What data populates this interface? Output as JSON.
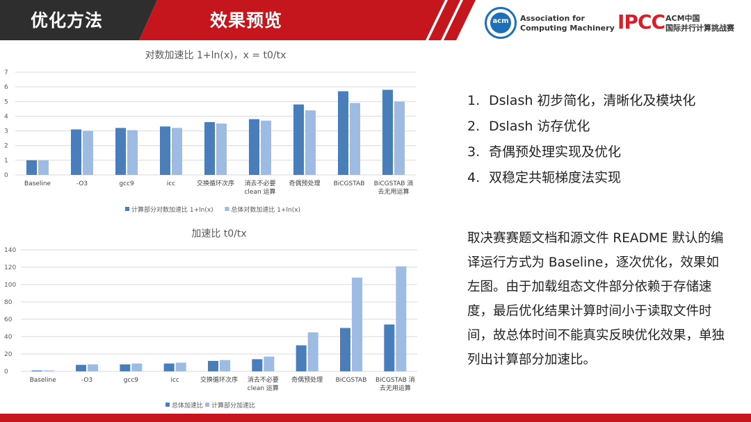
{
  "header": {
    "tab1_label": "优化方法",
    "tab2_label": "效果预览",
    "acm_logo_text": "acm",
    "acm_name_line1": "Association for",
    "acm_name_line2": "Computing Machinery",
    "ipcc_logo_text": "IPCC",
    "ipcc_line1": "ACM中国",
    "ipcc_line2": "国际并行计算挑战赛"
  },
  "colors": {
    "header_dark": "#2e2e2e",
    "header_red": "#c4161c",
    "series_dark": "#4a7ebb",
    "series_light": "#9dbbe3"
  },
  "chart_data": [
    {
      "type": "bar",
      "title": "对数加速比 1+ln(x)，x = t0/tx",
      "categories": [
        "Baseline",
        "-O3",
        "gcc9",
        "icc",
        "交换循环次序",
        "消去不必要 clean 运算",
        "奇偶预处理",
        "BiCGSTAB",
        "BiCGSTAB 消去无用运算"
      ],
      "series": [
        {
          "name": "计算部分对数加速比 1+ln(x)",
          "values": [
            1,
            3.1,
            3.2,
            3.3,
            3.6,
            3.8,
            4.8,
            5.7,
            5.8
          ]
        },
        {
          "name": "总体对数加速比 1+ln(x)",
          "values": [
            1,
            3.0,
            3.05,
            3.2,
            3.5,
            3.7,
            4.4,
            4.9,
            5.0
          ]
        }
      ],
      "ylim": [
        0,
        7
      ],
      "yticks": [
        0,
        1,
        2,
        3,
        4,
        5,
        6,
        7
      ],
      "grid": true,
      "legend": "bottom"
    },
    {
      "type": "bar",
      "title": "加速比 t0/tx",
      "categories": [
        "Baseline",
        "-O3",
        "gcc9",
        "icc",
        "交换循环次序",
        "消去不必要 clean 运算",
        "奇偶预处理",
        "BiCGSTAB",
        "BiCGSTAB 消去无用运算"
      ],
      "series": [
        {
          "name": "总体加速比",
          "values": [
            1,
            7.5,
            8,
            9,
            12,
            14,
            30,
            50,
            54
          ]
        },
        {
          "name": "计算部分加速比",
          "values": [
            1,
            8,
            9,
            10,
            13,
            17,
            45,
            108,
            121
          ]
        }
      ],
      "ylim": [
        0,
        140
      ],
      "yticks": [
        0,
        20,
        40,
        60,
        80,
        100,
        120,
        140
      ],
      "grid": true,
      "legend": "bottom"
    }
  ],
  "right_panel": {
    "list": [
      {
        "num": "1.",
        "text": "Dslash 初步简化，清晰化及模块化"
      },
      {
        "num": "2.",
        "text": "Dslash 访存优化"
      },
      {
        "num": "3.",
        "text": "奇偶预处理实现及优化"
      },
      {
        "num": "4.",
        "text": "双稳定共轭梯度法实现"
      }
    ],
    "paragraph": "取决赛赛题文档和源文件 README 默认的编译运行方式为 Baseline，逐次优化，效果如左图。由于加载组态文件部分依赖于存储速度，最后优化结果计算时间小于读取文件时间，故总体时间不能真实反映优化效果，单独列出计算部分加速比。"
  }
}
